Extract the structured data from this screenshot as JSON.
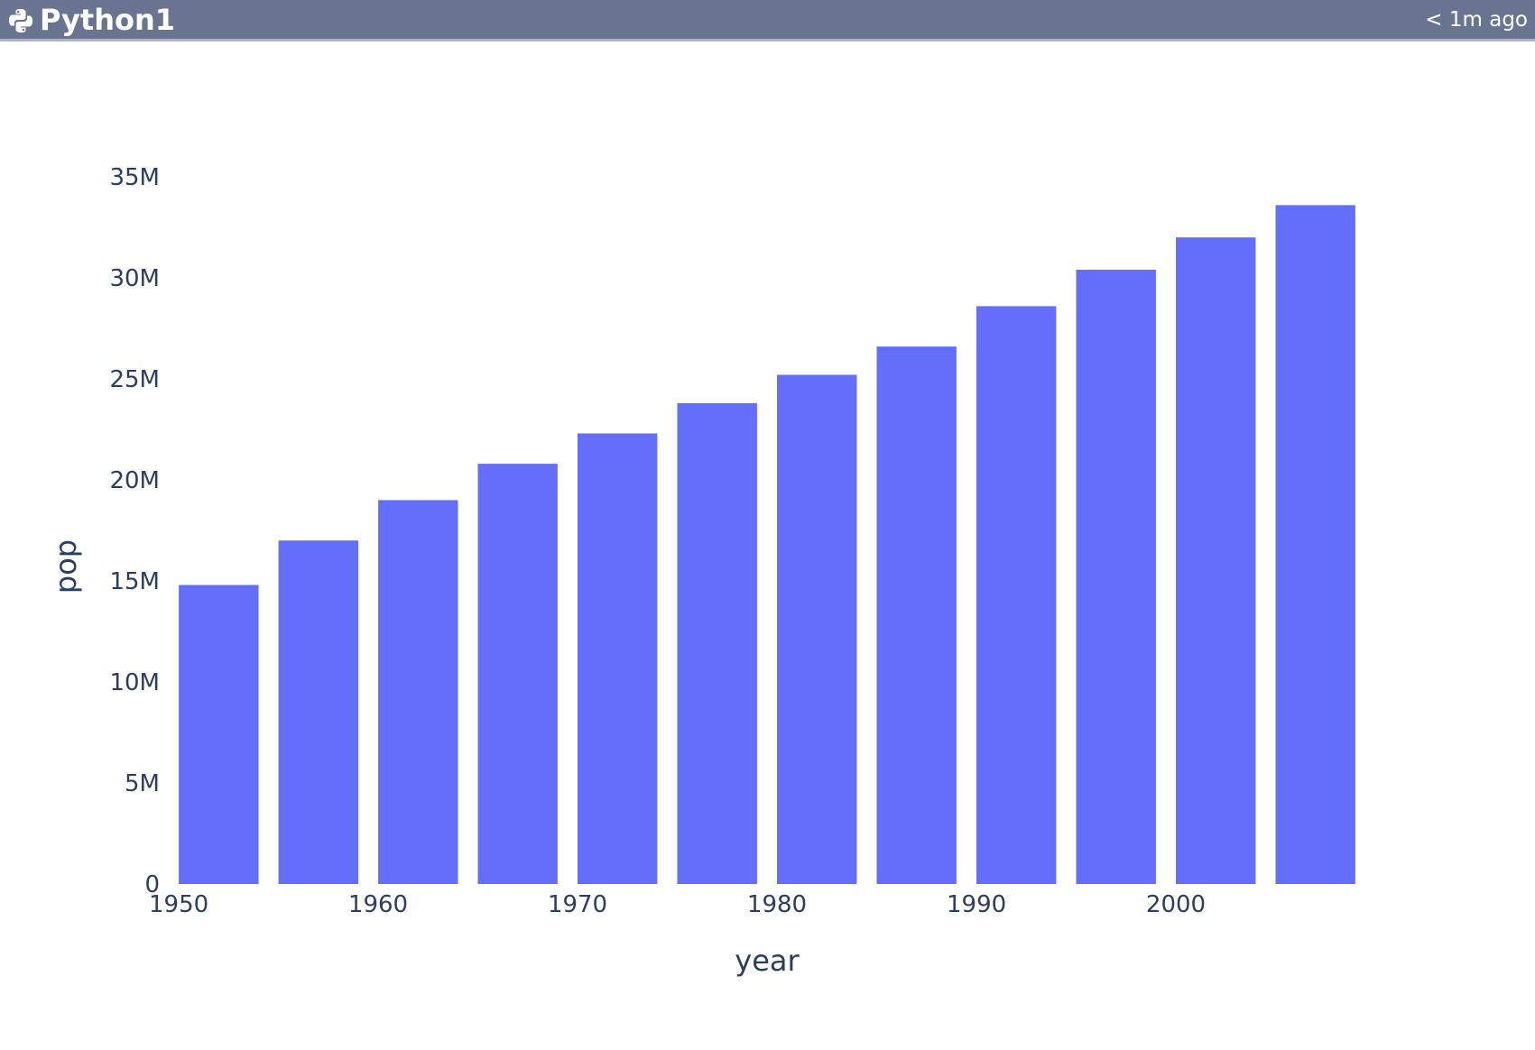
{
  "app": {
    "title": "Python1",
    "timestamp": "< 1m ago",
    "icon": "python-icon"
  },
  "colors": {
    "header_bg": "#697590",
    "bar": "#636efa",
    "text": "#2a3f5f"
  },
  "chart_data": {
    "type": "bar",
    "x": [
      1952,
      1957,
      1962,
      1967,
      1972,
      1977,
      1982,
      1987,
      1992,
      1997,
      2002,
      2007
    ],
    "values": [
      14800000,
      17000000,
      19000000,
      20800000,
      22300000,
      23800000,
      25200000,
      26600000,
      28600000,
      30400000,
      32000000,
      33600000
    ],
    "xlabel": "year",
    "ylabel": "pop",
    "xlim": [
      1949.5,
      2009.5
    ],
    "ylim": [
      0,
      35000000
    ],
    "x_ticks": [
      1950,
      1960,
      1970,
      1980,
      1990,
      2000
    ],
    "x_tick_labels": [
      "1950",
      "1960",
      "1970",
      "1980",
      "1990",
      "2000"
    ],
    "y_ticks": [
      0,
      5000000,
      10000000,
      15000000,
      20000000,
      25000000,
      30000000,
      35000000
    ],
    "y_tick_labels": [
      "0",
      "5M",
      "10M",
      "15M",
      "20M",
      "25M",
      "30M",
      "35M"
    ],
    "grid": false,
    "legend": "none"
  }
}
